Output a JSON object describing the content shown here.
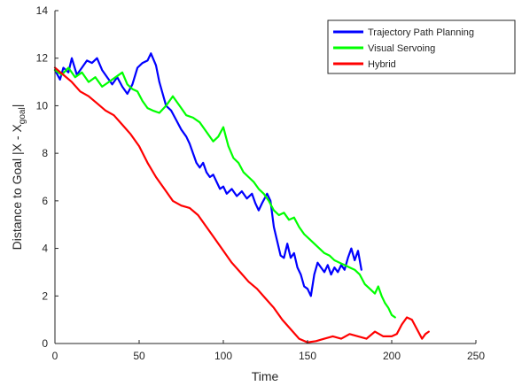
{
  "chart_data": {
    "type": "line",
    "xlabel": "Time",
    "ylabel_main": "Distance to Goal |X - X",
    "ylabel_sub": "goal",
    "ylabel_end": "|",
    "xlim": [
      0,
      250
    ],
    "ylim": [
      0,
      14
    ],
    "xticks": [
      0,
      50,
      100,
      150,
      200,
      250
    ],
    "yticks": [
      0,
      2,
      4,
      6,
      8,
      10,
      12,
      14
    ],
    "grid": false,
    "legend_position": "top-right",
    "series": [
      {
        "name": "Trajectory Path Planning",
        "color": "#0000ff",
        "points": [
          [
            0,
            11.5
          ],
          [
            3,
            11.1
          ],
          [
            5,
            11.6
          ],
          [
            8,
            11.4
          ],
          [
            10,
            12.0
          ],
          [
            13,
            11.3
          ],
          [
            16,
            11.6
          ],
          [
            19,
            11.9
          ],
          [
            22,
            11.8
          ],
          [
            25,
            12.0
          ],
          [
            28,
            11.5
          ],
          [
            31,
            11.2
          ],
          [
            34,
            10.9
          ],
          [
            37,
            11.2
          ],
          [
            40,
            10.8
          ],
          [
            43,
            10.5
          ],
          [
            46,
            10.9
          ],
          [
            49,
            11.6
          ],
          [
            52,
            11.8
          ],
          [
            55,
            11.9
          ],
          [
            57,
            12.2
          ],
          [
            60,
            11.7
          ],
          [
            62,
            11.0
          ],
          [
            64,
            10.5
          ],
          [
            66,
            10.0
          ],
          [
            69,
            9.8
          ],
          [
            72,
            9.4
          ],
          [
            75,
            9.0
          ],
          [
            78,
            8.7
          ],
          [
            80,
            8.4
          ],
          [
            82,
            8.0
          ],
          [
            84,
            7.6
          ],
          [
            86,
            7.4
          ],
          [
            88,
            7.6
          ],
          [
            90,
            7.2
          ],
          [
            92,
            7.0
          ],
          [
            94,
            7.1
          ],
          [
            96,
            6.8
          ],
          [
            98,
            6.5
          ],
          [
            100,
            6.6
          ],
          [
            102,
            6.3
          ],
          [
            105,
            6.5
          ],
          [
            108,
            6.2
          ],
          [
            111,
            6.4
          ],
          [
            114,
            6.1
          ],
          [
            117,
            6.3
          ],
          [
            119,
            5.9
          ],
          [
            121,
            5.6
          ],
          [
            123,
            5.9
          ],
          [
            126,
            6.3
          ],
          [
            128,
            6.0
          ],
          [
            130,
            4.9
          ],
          [
            132,
            4.3
          ],
          [
            134,
            3.7
          ],
          [
            136,
            3.6
          ],
          [
            138,
            4.2
          ],
          [
            140,
            3.6
          ],
          [
            142,
            3.8
          ],
          [
            144,
            3.2
          ],
          [
            146,
            2.9
          ],
          [
            148,
            2.4
          ],
          [
            150,
            2.3
          ],
          [
            152,
            2.0
          ],
          [
            154,
            2.9
          ],
          [
            156,
            3.4
          ],
          [
            158,
            3.2
          ],
          [
            160,
            3.0
          ],
          [
            162,
            3.3
          ],
          [
            164,
            2.9
          ],
          [
            166,
            3.2
          ],
          [
            168,
            3.0
          ],
          [
            170,
            3.3
          ],
          [
            172,
            3.1
          ],
          [
            174,
            3.6
          ],
          [
            176,
            4.0
          ],
          [
            178,
            3.5
          ],
          [
            180,
            3.9
          ],
          [
            182,
            3.1
          ]
        ]
      },
      {
        "name": "Visual Servoing",
        "color": "#00ff00",
        "points": [
          [
            0,
            11.5
          ],
          [
            4,
            11.3
          ],
          [
            8,
            11.6
          ],
          [
            12,
            11.2
          ],
          [
            16,
            11.4
          ],
          [
            20,
            11.0
          ],
          [
            24,
            11.2
          ],
          [
            28,
            10.8
          ],
          [
            32,
            11.0
          ],
          [
            36,
            11.2
          ],
          [
            40,
            11.4
          ],
          [
            43,
            10.9
          ],
          [
            46,
            10.7
          ],
          [
            49,
            10.6
          ],
          [
            52,
            10.2
          ],
          [
            55,
            9.9
          ],
          [
            58,
            9.8
          ],
          [
            62,
            9.7
          ],
          [
            66,
            10.0
          ],
          [
            70,
            10.4
          ],
          [
            74,
            10.0
          ],
          [
            78,
            9.6
          ],
          [
            82,
            9.5
          ],
          [
            86,
            9.3
          ],
          [
            90,
            8.9
          ],
          [
            94,
            8.5
          ],
          [
            97,
            8.7
          ],
          [
            100,
            9.1
          ],
          [
            103,
            8.3
          ],
          [
            106,
            7.8
          ],
          [
            109,
            7.6
          ],
          [
            112,
            7.2
          ],
          [
            115,
            7.0
          ],
          [
            118,
            6.8
          ],
          [
            121,
            6.5
          ],
          [
            124,
            6.3
          ],
          [
            127,
            6.0
          ],
          [
            130,
            5.6
          ],
          [
            133,
            5.4
          ],
          [
            136,
            5.5
          ],
          [
            139,
            5.2
          ],
          [
            142,
            5.3
          ],
          [
            145,
            4.9
          ],
          [
            148,
            4.6
          ],
          [
            151,
            4.4
          ],
          [
            154,
            4.2
          ],
          [
            157,
            4.0
          ],
          [
            160,
            3.8
          ],
          [
            163,
            3.7
          ],
          [
            166,
            3.5
          ],
          [
            169,
            3.4
          ],
          [
            172,
            3.3
          ],
          [
            175,
            3.2
          ],
          [
            178,
            3.1
          ],
          [
            181,
            2.9
          ],
          [
            184,
            2.5
          ],
          [
            187,
            2.3
          ],
          [
            190,
            2.1
          ],
          [
            192,
            2.4
          ],
          [
            194,
            2.0
          ],
          [
            196,
            1.7
          ],
          [
            198,
            1.5
          ],
          [
            200,
            1.2
          ],
          [
            202,
            1.1
          ]
        ]
      },
      {
        "name": "Hybrid",
        "color": "#ff0000",
        "points": [
          [
            0,
            11.6
          ],
          [
            5,
            11.3
          ],
          [
            10,
            11.0
          ],
          [
            15,
            10.6
          ],
          [
            20,
            10.4
          ],
          [
            25,
            10.1
          ],
          [
            30,
            9.8
          ],
          [
            35,
            9.6
          ],
          [
            40,
            9.2
          ],
          [
            45,
            8.8
          ],
          [
            50,
            8.3
          ],
          [
            55,
            7.6
          ],
          [
            60,
            7.0
          ],
          [
            65,
            6.5
          ],
          [
            70,
            6.0
          ],
          [
            75,
            5.8
          ],
          [
            80,
            5.7
          ],
          [
            85,
            5.4
          ],
          [
            90,
            4.9
          ],
          [
            95,
            4.4
          ],
          [
            100,
            3.9
          ],
          [
            105,
            3.4
          ],
          [
            110,
            3.0
          ],
          [
            115,
            2.6
          ],
          [
            120,
            2.3
          ],
          [
            125,
            1.9
          ],
          [
            130,
            1.5
          ],
          [
            135,
            1.0
          ],
          [
            140,
            0.6
          ],
          [
            145,
            0.2
          ],
          [
            150,
            0.05
          ],
          [
            155,
            0.1
          ],
          [
            160,
            0.2
          ],
          [
            165,
            0.3
          ],
          [
            170,
            0.2
          ],
          [
            175,
            0.4
          ],
          [
            180,
            0.3
          ],
          [
            185,
            0.2
          ],
          [
            190,
            0.5
          ],
          [
            195,
            0.3
          ],
          [
            200,
            0.3
          ],
          [
            203,
            0.4
          ],
          [
            206,
            0.8
          ],
          [
            209,
            1.1
          ],
          [
            212,
            1.0
          ],
          [
            215,
            0.6
          ],
          [
            218,
            0.2
          ],
          [
            220,
            0.4
          ],
          [
            222,
            0.5
          ]
        ]
      }
    ]
  }
}
